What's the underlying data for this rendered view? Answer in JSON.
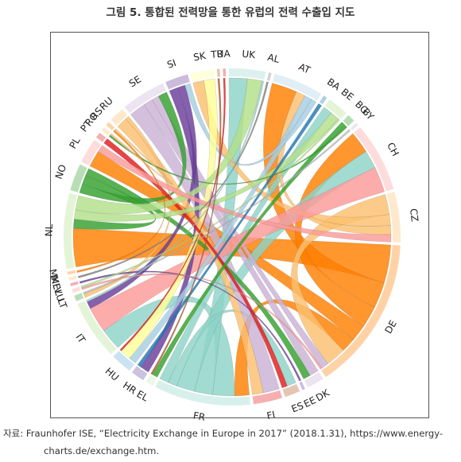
{
  "figure": {
    "title": "그림 5. 통합된 전력망을 통한 유럽의 전력 수출입 지도",
    "source_line1": "자료: Fraunhofer ISE, “Electricity Exchange in Europe in 2017” (2018.1.31), https://www.energy-",
    "source_line2": "charts.de/exchange.htm."
  },
  "chart_data": {
    "type": "chord",
    "nodes": [
      {
        "code": "UK",
        "color": "#9ad3ce"
      },
      {
        "code": "AL",
        "color": "#7f7f7f"
      },
      {
        "code": "AT",
        "color": "#a6cee3"
      },
      {
        "code": "BA",
        "color": "#1f78b4"
      },
      {
        "code": "BE",
        "color": "#b2df8a"
      },
      {
        "code": "BG",
        "color": "#33a02c"
      },
      {
        "code": "BY",
        "color": "#bbbbbb"
      },
      {
        "code": "CH",
        "color": "#fb9a99"
      },
      {
        "code": "CZ",
        "color": "#fdbf6f"
      },
      {
        "code": "DE",
        "color": "#ff7f00"
      },
      {
        "code": "DK",
        "color": "#cab2d6"
      },
      {
        "code": "EE",
        "color": "#6a3d9a"
      },
      {
        "code": "ES",
        "color": "#b15928"
      },
      {
        "code": "FI",
        "color": "#e31a1c"
      },
      {
        "code": "FR",
        "color": "#8dd3c7"
      },
      {
        "code": "EL",
        "color": "#c7e9c0"
      },
      {
        "code": "HR",
        "color": "#6a51a3"
      },
      {
        "code": "HU",
        "color": "#6baed6"
      },
      {
        "code": "IT",
        "color": "#b2df8a"
      },
      {
        "code": "LT",
        "color": "#33a02c"
      },
      {
        "code": "LU",
        "color": "#fb9a99"
      },
      {
        "code": "LV",
        "color": "#e31a1c"
      },
      {
        "code": "ME",
        "color": "#fdbf6f"
      },
      {
        "code": "MK",
        "color": "#ff7f00"
      },
      {
        "code": "NL",
        "color": "#b2df8a"
      },
      {
        "code": "NO",
        "color": "#33a02c"
      },
      {
        "code": "PL",
        "color": "#fb9a99"
      },
      {
        "code": "PT",
        "color": "#e31a1c"
      },
      {
        "code": "RO",
        "color": "#fdbf6f"
      },
      {
        "code": "RS",
        "color": "#ff7f00"
      },
      {
        "code": "RU",
        "color": "#fdbf6f"
      },
      {
        "code": "SE",
        "color": "#cab2d6"
      },
      {
        "code": "SI",
        "color": "#6a3d9a"
      },
      {
        "code": "SK",
        "color": "#ffff99"
      },
      {
        "code": "TR",
        "color": "#b15928"
      },
      {
        "code": "UA",
        "color": "#e31a1c"
      }
    ],
    "links": [
      {
        "source": "DE",
        "target": "NL",
        "value": 21
      },
      {
        "source": "DE",
        "target": "AT",
        "value": 14
      },
      {
        "source": "DE",
        "target": "CH",
        "value": 12
      },
      {
        "source": "DE",
        "target": "PL",
        "value": 9
      },
      {
        "source": "DE",
        "target": "FR",
        "value": 8
      },
      {
        "source": "FR",
        "target": "IT",
        "value": 12
      },
      {
        "source": "FR",
        "target": "UK",
        "value": 10
      },
      {
        "source": "FR",
        "target": "CH",
        "value": 10
      },
      {
        "source": "FR",
        "target": "ES",
        "value": 5
      },
      {
        "source": "FR",
        "target": "BE",
        "value": 5
      },
      {
        "source": "CZ",
        "target": "DE",
        "value": 11
      },
      {
        "source": "CZ",
        "target": "SK",
        "value": 6
      },
      {
        "source": "CZ",
        "target": "AT",
        "value": 5
      },
      {
        "source": "SE",
        "target": "FI",
        "value": 9
      },
      {
        "source": "SE",
        "target": "DK",
        "value": 5
      },
      {
        "source": "SE",
        "target": "DE",
        "value": 4
      },
      {
        "source": "NO",
        "target": "SE",
        "value": 5
      },
      {
        "source": "NO",
        "target": "NL",
        "value": 5
      },
      {
        "source": "NO",
        "target": "DK",
        "value": 4
      },
      {
        "source": "CH",
        "target": "IT",
        "value": 14
      },
      {
        "source": "SI",
        "target": "HR",
        "value": 5
      },
      {
        "source": "SI",
        "target": "IT",
        "value": 4
      },
      {
        "source": "AT",
        "target": "HU",
        "value": 4
      },
      {
        "source": "AT",
        "target": "SI",
        "value": 3
      },
      {
        "source": "SK",
        "target": "HU",
        "value": 6
      },
      {
        "source": "RU",
        "target": "FI",
        "value": 6
      },
      {
        "source": "RU",
        "target": "LT",
        "value": 2
      },
      {
        "source": "PT",
        "target": "ES",
        "value": 3
      },
      {
        "source": "NL",
        "target": "BE",
        "value": 5
      },
      {
        "source": "NL",
        "target": "UK",
        "value": 8
      },
      {
        "source": "PL",
        "target": "CZ",
        "value": 4
      },
      {
        "source": "BG",
        "target": "EL",
        "value": 3
      },
      {
        "source": "BG",
        "target": "RO",
        "value": 1
      },
      {
        "source": "BA",
        "target": "HR",
        "value": 2
      },
      {
        "source": "RS",
        "target": "MK",
        "value": 1
      },
      {
        "source": "RO",
        "target": "RS",
        "value": 1
      },
      {
        "source": "BY",
        "target": "LT",
        "value": 1
      },
      {
        "source": "EE",
        "target": "LV",
        "value": 1
      },
      {
        "source": "UA",
        "target": "HU",
        "value": 1
      },
      {
        "source": "TR",
        "target": "EL",
        "value": 1
      },
      {
        "source": "AL",
        "target": "ME",
        "value": 1
      },
      {
        "source": "LU",
        "target": "DE",
        "value": 1
      },
      {
        "source": "UK",
        "target": "IT",
        "value": 1
      },
      {
        "source": "BE",
        "target": "LU",
        "value": 1
      }
    ]
  }
}
